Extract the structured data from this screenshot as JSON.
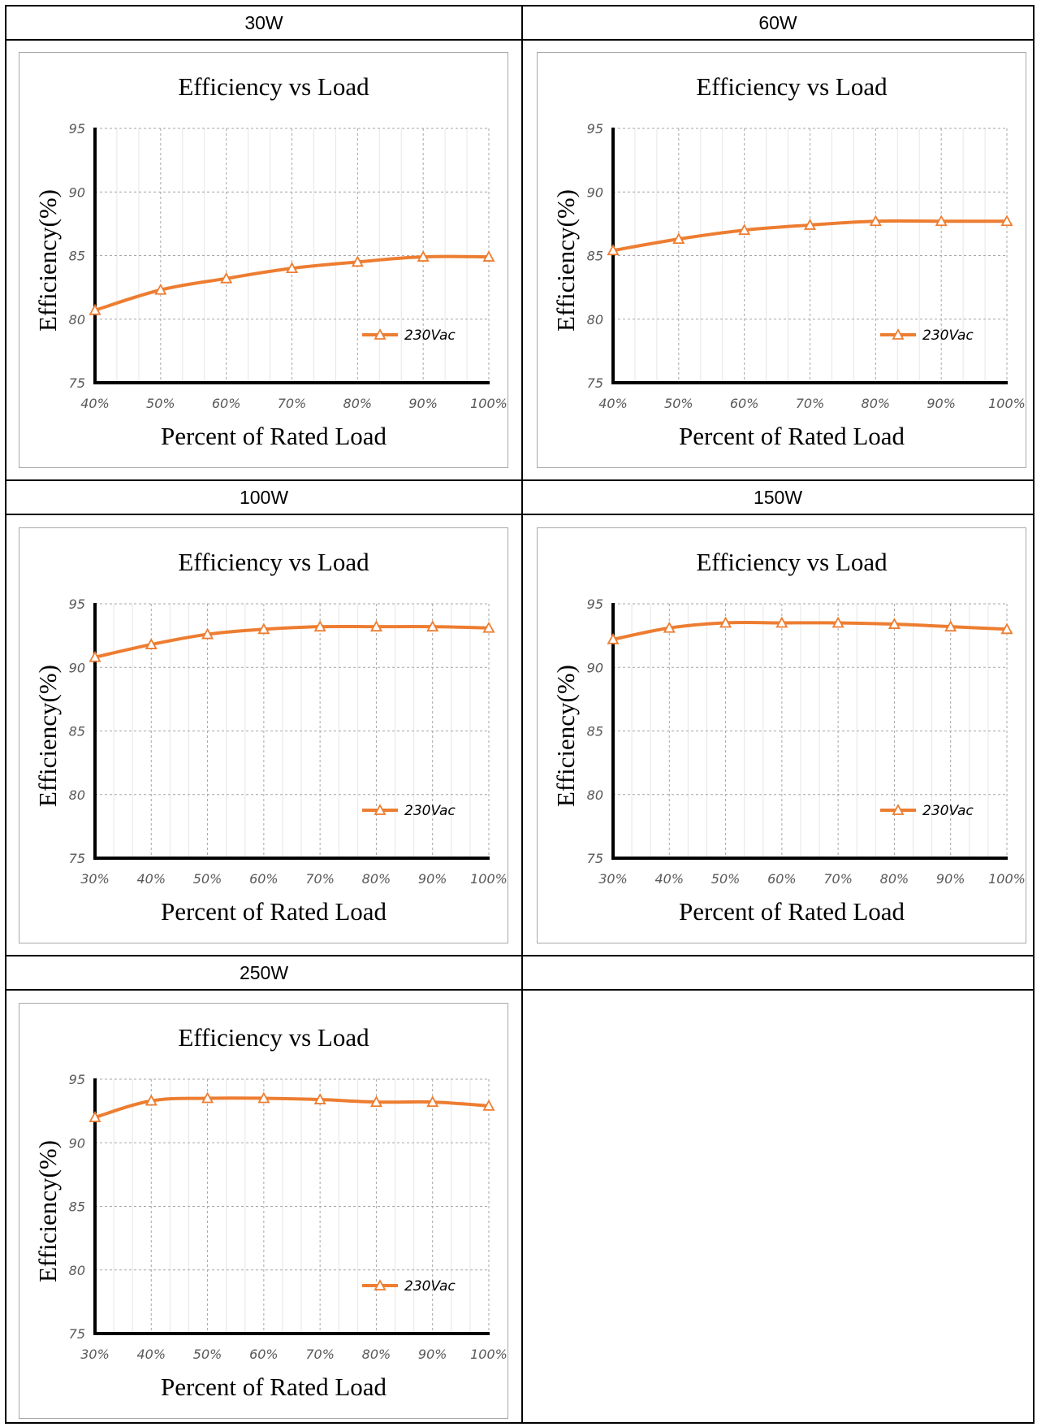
{
  "colors": {
    "series": "#ED7D31",
    "axis": "#000000",
    "grid": "#a6a6a6",
    "minor_grid": "#e6e6e6",
    "frame": "#a8a8a8"
  },
  "cells": [
    {
      "label": "30W"
    },
    {
      "label": "60W"
    },
    {
      "label": "100W"
    },
    {
      "label": "150W"
    },
    {
      "label": "250W"
    },
    {
      "label": ""
    }
  ],
  "chart_data": [
    {
      "type": "line",
      "title": "Efficiency vs Load",
      "xlabel": "Percent of Rated Load",
      "ylabel": "Efficiency(%)",
      "categories": [
        "40%",
        "50%",
        "60%",
        "70%",
        "80%",
        "90%",
        "100%"
      ],
      "ylim": [
        75,
        95
      ],
      "yticks": [
        "75",
        "80",
        "85",
        "90",
        "95"
      ],
      "grid": true,
      "legend_position": "lower-right",
      "series": [
        {
          "name": "230Vac",
          "marker": "triangle",
          "values": [
            80.7,
            82.3,
            83.2,
            84.0,
            84.5,
            84.9,
            84.9
          ]
        }
      ]
    },
    {
      "type": "line",
      "title": "Efficiency vs Load",
      "xlabel": "Percent of Rated Load",
      "ylabel": "Efficiency(%)",
      "categories": [
        "40%",
        "50%",
        "60%",
        "70%",
        "80%",
        "90%",
        "100%"
      ],
      "ylim": [
        75,
        95
      ],
      "yticks": [
        "75",
        "80",
        "85",
        "90",
        "95"
      ],
      "grid": true,
      "legend_position": "lower-right",
      "series": [
        {
          "name": "230Vac",
          "marker": "triangle",
          "values": [
            85.4,
            86.3,
            87.0,
            87.4,
            87.7,
            87.7,
            87.7
          ]
        }
      ]
    },
    {
      "type": "line",
      "title": "Efficiency vs Load",
      "xlabel": "Percent of Rated Load",
      "ylabel": "Efficiency(%)",
      "categories": [
        "30%",
        "40%",
        "50%",
        "60%",
        "70%",
        "80%",
        "90%",
        "100%"
      ],
      "ylim": [
        75,
        95
      ],
      "yticks": [
        "75",
        "80",
        "85",
        "90",
        "95"
      ],
      "grid": true,
      "legend_position": "lower-right",
      "series": [
        {
          "name": "230Vac",
          "marker": "triangle",
          "values": [
            90.8,
            91.8,
            92.6,
            93.0,
            93.2,
            93.2,
            93.2,
            93.1
          ]
        }
      ]
    },
    {
      "type": "line",
      "title": "Efficiency vs Load",
      "xlabel": "Percent of Rated Load",
      "ylabel": "Efficiency(%)",
      "categories": [
        "30%",
        "40%",
        "50%",
        "60%",
        "70%",
        "80%",
        "90%",
        "100%"
      ],
      "ylim": [
        75,
        95
      ],
      "yticks": [
        "75",
        "80",
        "85",
        "90",
        "95"
      ],
      "grid": true,
      "legend_position": "lower-right",
      "series": [
        {
          "name": "230Vac",
          "marker": "triangle",
          "values": [
            92.2,
            93.1,
            93.5,
            93.5,
            93.5,
            93.4,
            93.2,
            93.0
          ]
        }
      ]
    },
    {
      "type": "line",
      "title": "Efficiency vs Load",
      "xlabel": "Percent of Rated Load",
      "ylabel": "Efficiency(%)",
      "categories": [
        "30%",
        "40%",
        "50%",
        "60%",
        "70%",
        "80%",
        "90%",
        "100%"
      ],
      "ylim": [
        75,
        95
      ],
      "yticks": [
        "75",
        "80",
        "85",
        "90",
        "95"
      ],
      "grid": true,
      "legend_position": "lower-right",
      "series": [
        {
          "name": "230Vac",
          "marker": "triangle",
          "values": [
            92.0,
            93.3,
            93.5,
            93.5,
            93.4,
            93.2,
            93.2,
            92.9
          ]
        }
      ]
    }
  ]
}
